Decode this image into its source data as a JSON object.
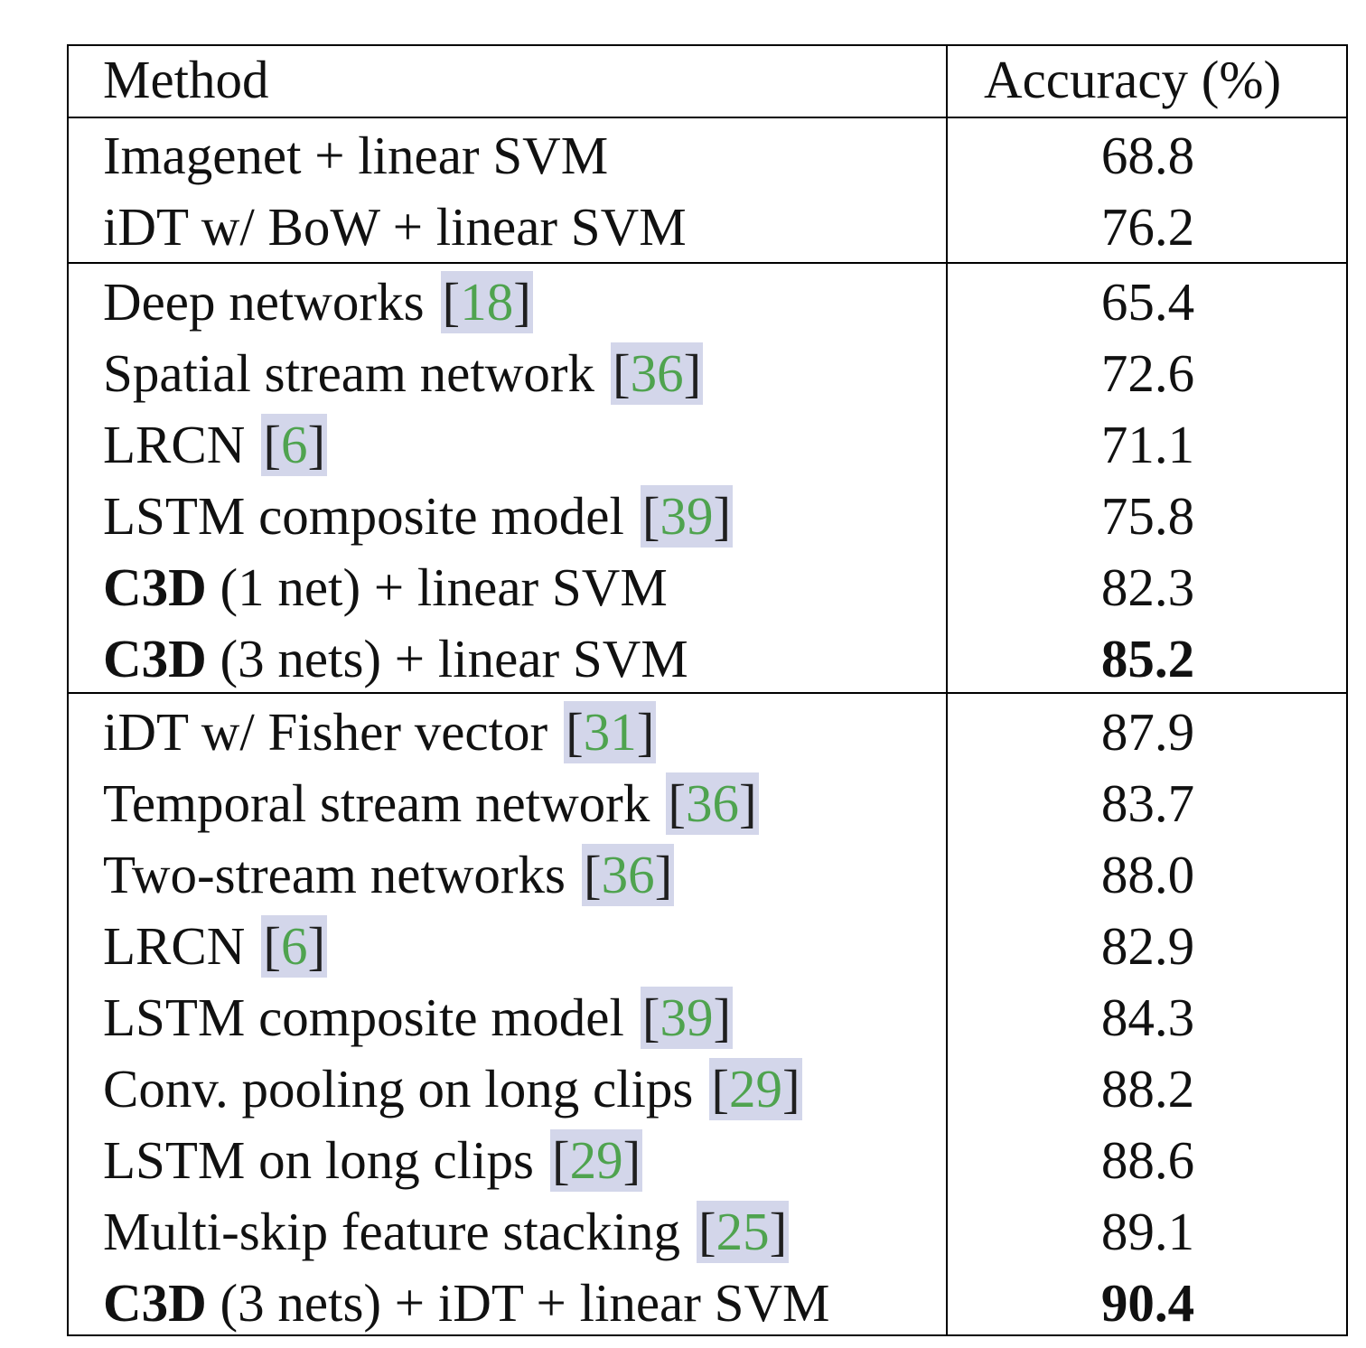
{
  "table": {
    "header": {
      "method": "Method",
      "accuracy": "Accuracy (%)"
    },
    "rows": [
      {
        "group": 1,
        "method": "Imagenet + linear SVM",
        "method_bold": "",
        "ref": "",
        "accuracy": "68.8",
        "accuracy_bold": false
      },
      {
        "group": 1,
        "method": "iDT w/ BoW + linear SVM",
        "method_bold": "",
        "ref": "",
        "accuracy": "76.2",
        "accuracy_bold": false
      },
      {
        "group": 2,
        "method": "Deep networks",
        "method_bold": "",
        "ref": "18",
        "accuracy": "65.4",
        "accuracy_bold": false
      },
      {
        "group": 2,
        "method": "Spatial stream network",
        "method_bold": "",
        "ref": "36",
        "accuracy": "72.6",
        "accuracy_bold": false
      },
      {
        "group": 2,
        "method": "LRCN",
        "method_bold": "",
        "ref": "6",
        "accuracy": "71.1",
        "accuracy_bold": false
      },
      {
        "group": 2,
        "method": "LSTM composite model",
        "method_bold": "",
        "ref": "39",
        "accuracy": "75.8",
        "accuracy_bold": false
      },
      {
        "group": 2,
        "method": " (1 net) + linear SVM",
        "method_bold": "C3D",
        "ref": "",
        "accuracy": "82.3",
        "accuracy_bold": false
      },
      {
        "group": 2,
        "method": " (3 nets) + linear SVM",
        "method_bold": "C3D",
        "ref": "",
        "accuracy": "85.2",
        "accuracy_bold": true
      },
      {
        "group": 3,
        "method": "iDT w/ Fisher vector",
        "method_bold": "",
        "ref": "31",
        "accuracy": "87.9",
        "accuracy_bold": false
      },
      {
        "group": 3,
        "method": "Temporal stream network",
        "method_bold": "",
        "ref": "36",
        "accuracy": "83.7",
        "accuracy_bold": false
      },
      {
        "group": 3,
        "method": "Two-stream networks",
        "method_bold": "",
        "ref": "36",
        "accuracy": "88.0",
        "accuracy_bold": false
      },
      {
        "group": 3,
        "method": "LRCN",
        "method_bold": "",
        "ref": "6",
        "accuracy": "82.9",
        "accuracy_bold": false
      },
      {
        "group": 3,
        "method": "LSTM composite model",
        "method_bold": "",
        "ref": "39",
        "accuracy": "84.3",
        "accuracy_bold": false
      },
      {
        "group": 3,
        "method": "Conv. pooling on long clips",
        "method_bold": "",
        "ref": "29",
        "accuracy": "88.2",
        "accuracy_bold": false
      },
      {
        "group": 3,
        "method": "LSTM on long clips",
        "method_bold": "",
        "ref": "29",
        "accuracy": "88.6",
        "accuracy_bold": false
      },
      {
        "group": 3,
        "method": "Multi-skip feature stacking",
        "method_bold": "",
        "ref": "25",
        "accuracy": "89.1",
        "accuracy_bold": false
      },
      {
        "group": 3,
        "method": " (3 nets) + iDT + linear SVM",
        "method_bold": "C3D",
        "ref": "",
        "accuracy": "90.4",
        "accuracy_bold": true
      }
    ]
  },
  "colors": {
    "citation_bg": "#d3d6ea",
    "citation_number": "#4fa34f"
  }
}
